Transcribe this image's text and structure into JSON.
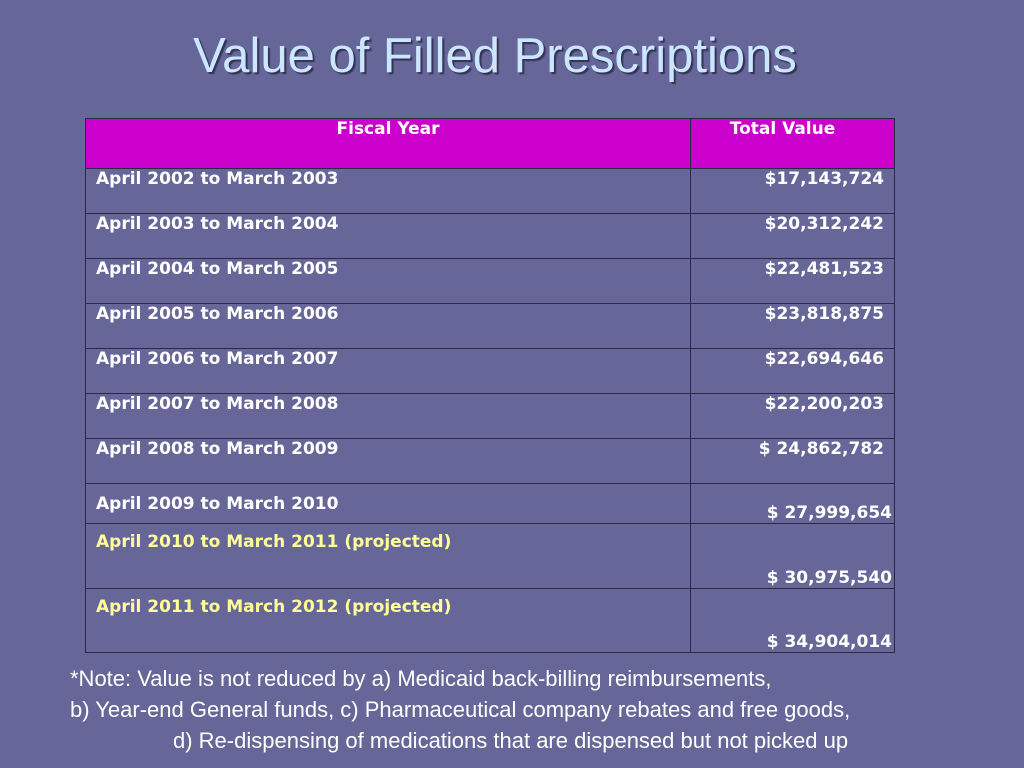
{
  "title": "Value of Filled Prescriptions",
  "table": {
    "headers": [
      "Fiscal Year",
      "Total Value"
    ],
    "rows": [
      {
        "fiscal_year": "April 2002 to March 2003",
        "total_value": "$17,143,724"
      },
      {
        "fiscal_year": "April 2003 to March 2004",
        "total_value": "$20,312,242"
      },
      {
        "fiscal_year": "April 2004 to March 2005",
        "total_value": "$22,481,523"
      },
      {
        "fiscal_year": "April 2005 to March 2006",
        "total_value": "$23,818,875"
      },
      {
        "fiscal_year": "April 2006 to March 2007",
        "total_value": "$22,694,646"
      },
      {
        "fiscal_year": "April 2007 to March 2008",
        "total_value": "$22,200,203"
      },
      {
        "fiscal_year": "April 2008 to March 2009",
        "total_value": "$ 24,862,782"
      },
      {
        "fiscal_year": "April 2009 to March 2010",
        "total_value": "$ 27,999,654"
      },
      {
        "fiscal_year": "April 2010 to March 2011 (projected)",
        "total_value": "$ 30,975,540"
      },
      {
        "fiscal_year": "April 2011 to March 2012 (projected)",
        "total_value": "$ 34,904,014"
      }
    ]
  },
  "note": {
    "line1": "*Note: Value is not reduced by a) Medicaid back-billing reimbursements,",
    "line2": "b) Year-end General funds, c) Pharmaceutical company rebates and free goods,",
    "line3": "d) Re-dispensing of medications that are dispensed but not picked up"
  },
  "colors": {
    "background": "#666699",
    "title": "#cce6ff",
    "header_fill": "#cc00cc",
    "projected_text": "#ffff99",
    "text": "#ffffff"
  }
}
